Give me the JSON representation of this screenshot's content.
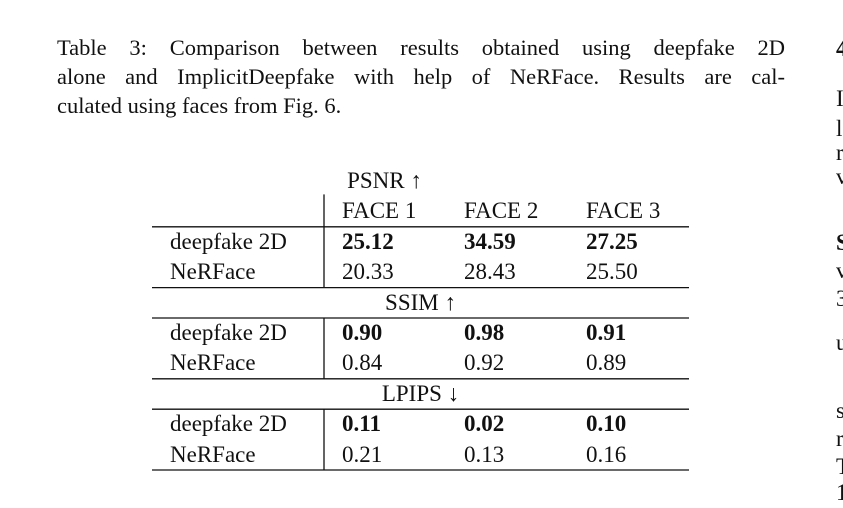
{
  "caption": {
    "lines": [
      "Table 3: Comparison between results obtained using deepfake 2D",
      "alone and ImplicitDeepfake with help of NeRFace. Results are cal-",
      "culated using faces from Fig. 6."
    ]
  },
  "table": {
    "columns": [
      "FACE 1",
      "FACE 2",
      "FACE 3"
    ],
    "sections": [
      {
        "title": "PSNR ↑",
        "rows": [
          {
            "label": "deepfake 2D",
            "bold": true,
            "values": [
              "25.12",
              "34.59",
              "27.25"
            ]
          },
          {
            "label": "NeRFace",
            "bold": false,
            "values": [
              "20.33",
              "28.43",
              "25.50"
            ]
          }
        ]
      },
      {
        "title": "SSIM ↑",
        "rows": [
          {
            "label": "deepfake 2D",
            "bold": true,
            "values": [
              "0.90",
              "0.98",
              "0.91"
            ]
          },
          {
            "label": "NeRFace",
            "bold": false,
            "values": [
              "0.84",
              "0.92",
              "0.89"
            ]
          }
        ]
      },
      {
        "title": "LPIPS ↓",
        "rows": [
          {
            "label": "deepfake 2D",
            "bold": true,
            "values": [
              "0.11",
              "0.02",
              "0.10"
            ]
          },
          {
            "label": "NeRFace",
            "bold": false,
            "values": [
              "0.21",
              "0.13",
              "0.16"
            ]
          }
        ]
      }
    ]
  },
  "next_column_fragments": [
    "4",
    "I",
    "l",
    "r",
    "v",
    "S",
    "v",
    "3",
    "u",
    "s",
    "r",
    "T",
    "1"
  ]
}
